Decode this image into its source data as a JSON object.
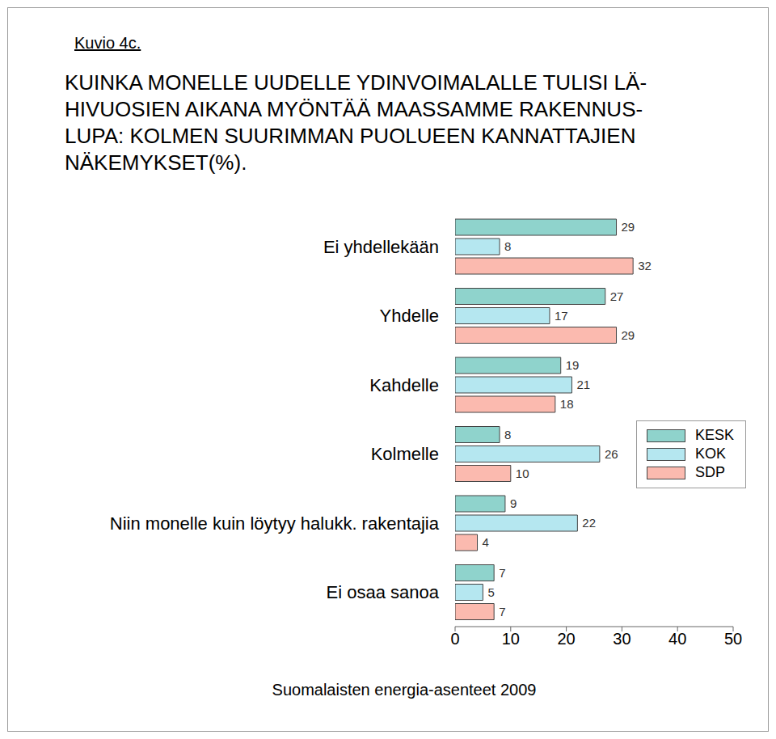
{
  "chart_data": {
    "type": "bar",
    "orientation": "horizontal",
    "figure_label": "Kuvio 4c.",
    "title": [
      "KUINKA MONELLE UUDELLE YDINVOIMALALLE TULISI LÄ-",
      "HIVUOSIEN AIKANA MYÖNTÄÄ MAASSAMME RAKENNUS-",
      "LUPA: KOLMEN SUURIMMAN PUOLUEEN KANNATTAJIEN",
      "NÄKEMYKSET(%)."
    ],
    "source": "Suomalaisten energia-asenteet 2009",
    "categories": [
      "Ei yhdellekään",
      "Yhdelle",
      "Kahdelle",
      "Kolmelle",
      "Niin monelle kuin löytyy halukk. rakentajia",
      "Ei osaa sanoa"
    ],
    "series": [
      {
        "name": "KESK",
        "color": "#8fd3cc",
        "values": [
          29,
          27,
          19,
          8,
          9,
          7
        ]
      },
      {
        "name": "KOK",
        "color": "#b5e7f0",
        "values": [
          8,
          17,
          21,
          26,
          22,
          5
        ]
      },
      {
        "name": "SDP",
        "color": "#fbbaaf",
        "values": [
          32,
          29,
          18,
          10,
          4,
          7
        ]
      }
    ],
    "xlim": [
      0,
      50
    ],
    "xticks": [
      0,
      10,
      20,
      30,
      40,
      50
    ],
    "grid": false,
    "legend": "right",
    "data_labels": true
  }
}
